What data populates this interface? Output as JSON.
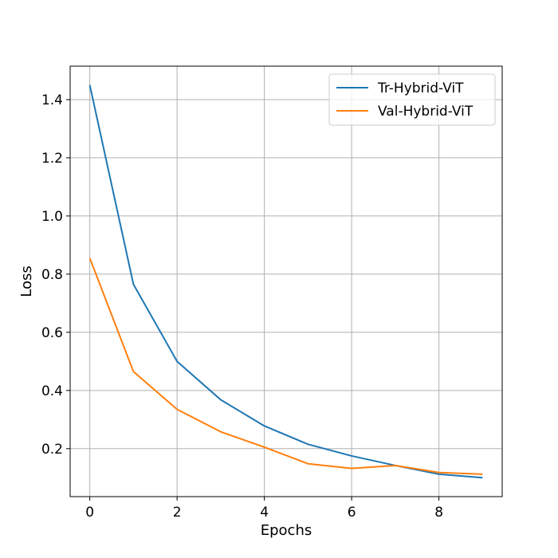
{
  "chart_data": {
    "type": "line",
    "title": "",
    "xlabel": "Epochs",
    "ylabel": "Loss",
    "xlim": [
      -0.45,
      9.45
    ],
    "ylim": [
      0.035,
      1.515
    ],
    "xticks": [
      0,
      2,
      4,
      6,
      8
    ],
    "xtick_labels": [
      "0",
      "2",
      "4",
      "6",
      "8"
    ],
    "yticks": [
      0.2,
      0.4,
      0.6,
      0.8,
      1.0,
      1.2,
      1.4
    ],
    "ytick_labels": [
      "0.2",
      "0.4",
      "0.6",
      "0.8",
      "1.0",
      "1.2",
      "1.4"
    ],
    "grid": true,
    "legend_position": "top-right",
    "x": [
      0,
      1,
      2,
      3,
      4,
      5,
      6,
      7,
      8,
      9
    ],
    "series": [
      {
        "name": "Tr-Hybrid-ViT",
        "color": "#1f77b4",
        "values": [
          1.45,
          0.765,
          0.5,
          0.368,
          0.278,
          0.215,
          0.175,
          0.142,
          0.112,
          0.1
        ]
      },
      {
        "name": "Val-Hybrid-ViT",
        "color": "#ff7f0e",
        "values": [
          0.855,
          0.465,
          0.335,
          0.258,
          0.205,
          0.148,
          0.132,
          0.142,
          0.118,
          0.112
        ]
      }
    ]
  }
}
